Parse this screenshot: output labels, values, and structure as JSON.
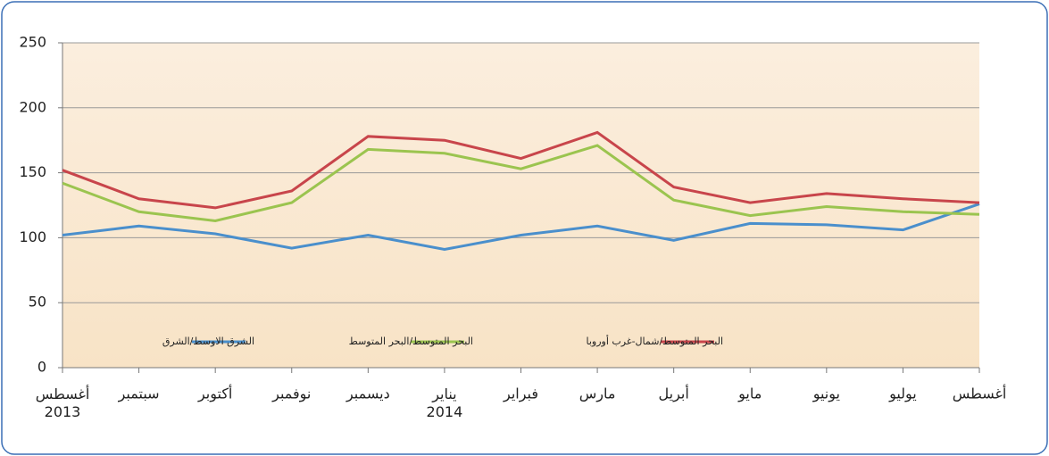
{
  "chart_data": {
    "type": "line",
    "categories": [
      "أغسطس\n2013",
      "سبتمبر",
      "أكتوبر",
      "نوفمبر",
      "ديسمبر",
      "يناير\n2014",
      "فبراير",
      "مارس",
      "أبريل",
      "مايو",
      "يونيو",
      "يوليو",
      "أغسطس"
    ],
    "series": [
      {
        "name": "الشرق الاوسط/الشرق",
        "color": "#4a8fcc",
        "values": [
          102,
          109,
          103,
          92,
          102,
          91,
          102,
          109,
          98,
          111,
          110,
          106,
          126
        ]
      },
      {
        "name": "البحر المتوسط/البحر المتوسط",
        "color": "#9bc44f",
        "values": [
          142,
          120,
          113,
          127,
          168,
          165,
          153,
          171,
          129,
          117,
          124,
          120,
          118
        ]
      },
      {
        "name": "البحر المتوسط/شمال-غرب أوروبا",
        "color": "#c8454b",
        "values": [
          152,
          130,
          123,
          136,
          178,
          175,
          161,
          181,
          139,
          127,
          134,
          130,
          127
        ]
      }
    ],
    "ylim": [
      0,
      250
    ],
    "yticks": [
      0,
      50,
      100,
      150,
      200,
      250
    ],
    "grid": true
  }
}
